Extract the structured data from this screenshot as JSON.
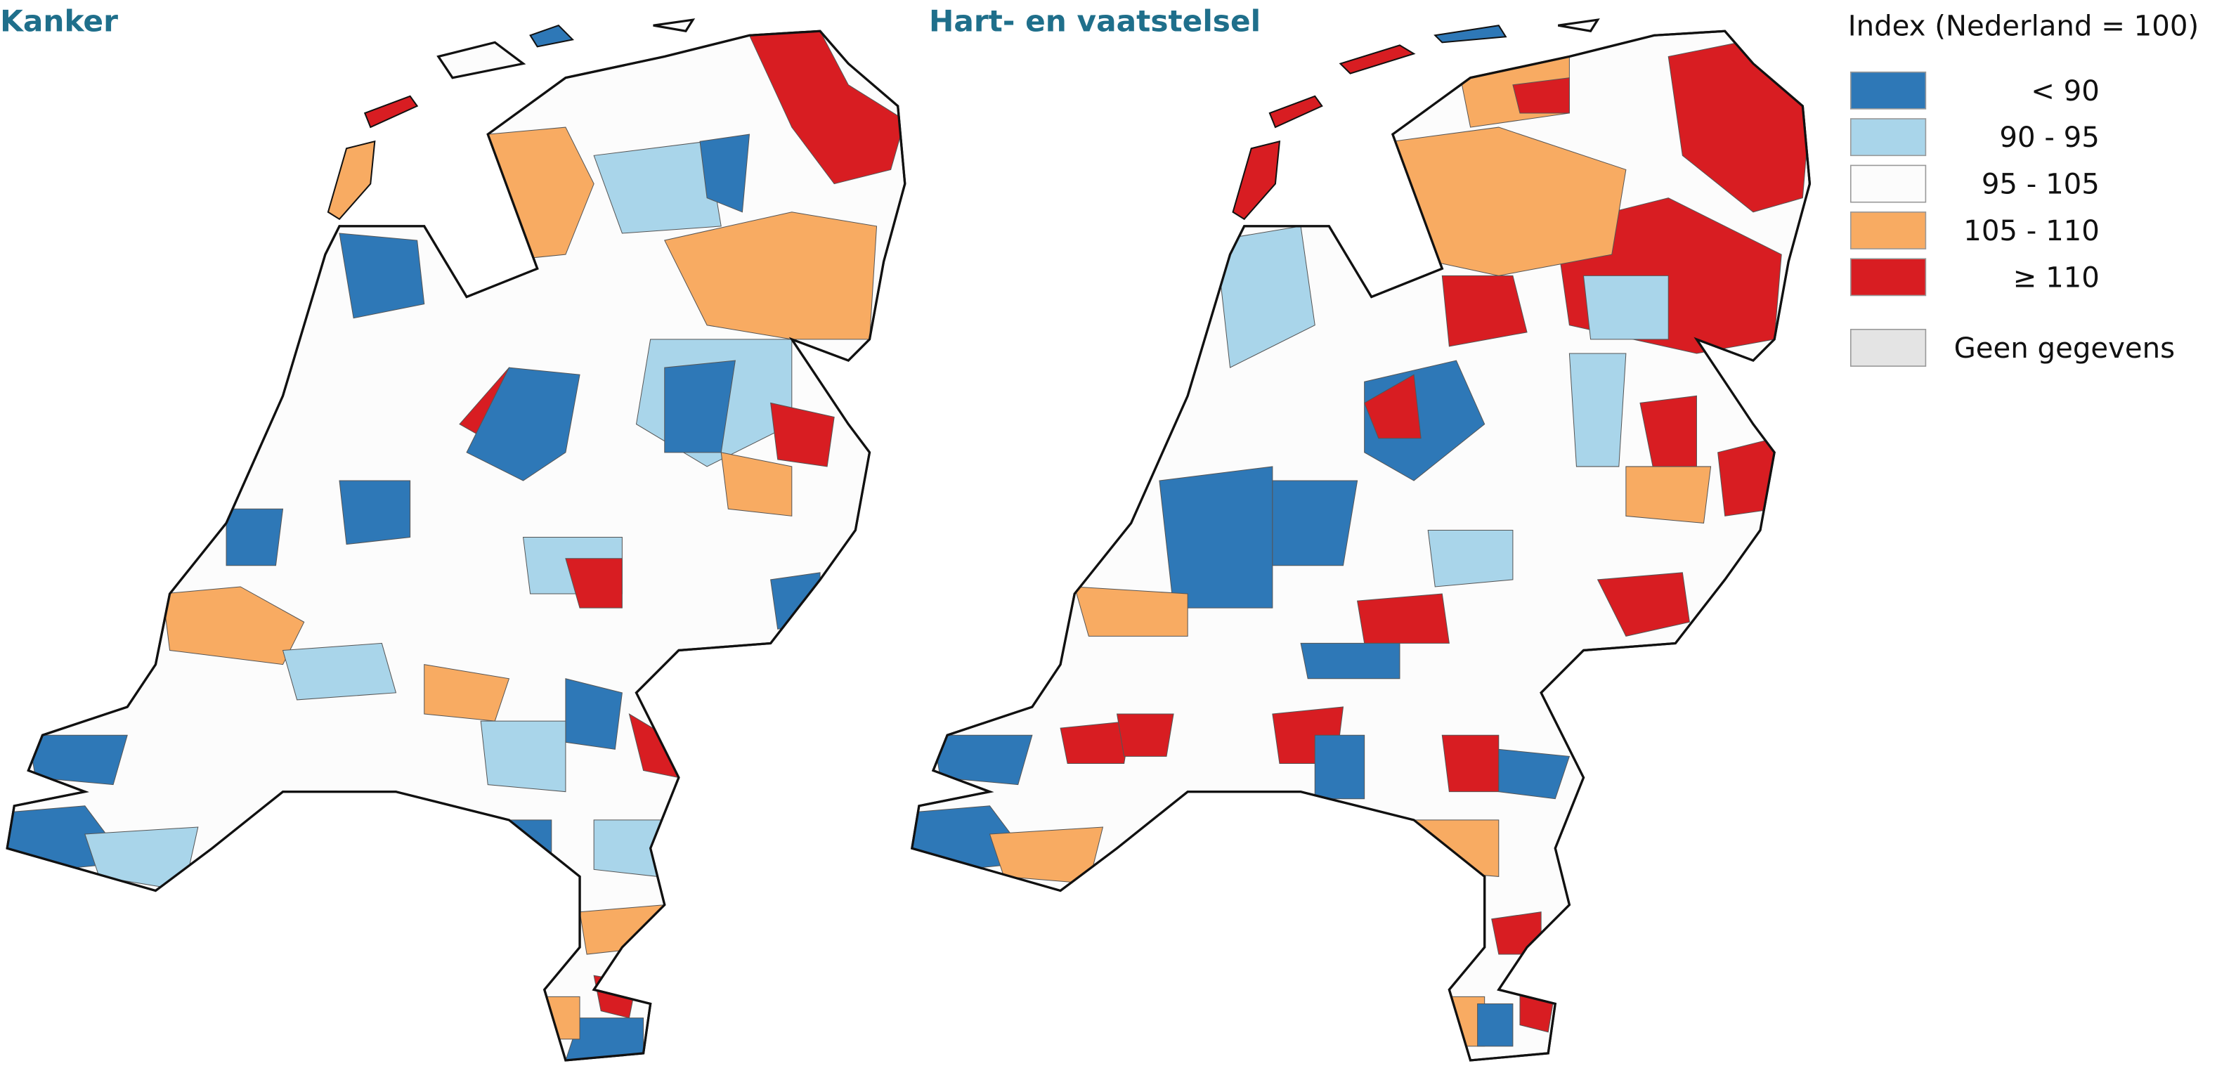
{
  "maps": [
    {
      "title": "Kanker"
    },
    {
      "title": "Hart- en vaatstelsel"
    }
  ],
  "legend": {
    "title": "Index (Nederland = 100)",
    "items": [
      {
        "label": "< 90",
        "color": "#2e78b7"
      },
      {
        "label": "90 -   95",
        "color": "#a9d5ea"
      },
      {
        "label": "95 - 105",
        "color": "#fcfcfc"
      },
      {
        "label": "105 - 110",
        "color": "#f8ab62"
      },
      {
        "label": "≥ 110",
        "color": "#d81d22"
      }
    ],
    "missing": {
      "label": "Geen gegevens",
      "color": "#e4e4e4"
    }
  }
}
